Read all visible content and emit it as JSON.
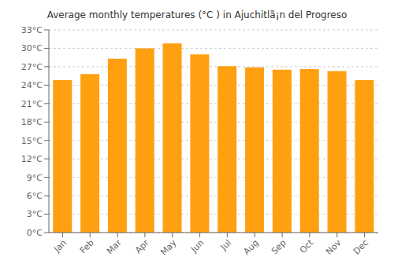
{
  "chart_data": {
    "type": "bar",
    "title": "Average monthly temperatures (°C ) in Ajuchitlã¡n del Progreso",
    "categories": [
      "Jan",
      "Feb",
      "Mar",
      "Apr",
      "May",
      "Jun",
      "Jul",
      "Aug",
      "Sep",
      "Oct",
      "Nov",
      "Dec"
    ],
    "values": [
      24.8,
      25.8,
      28.3,
      30.0,
      30.8,
      29.0,
      27.1,
      26.9,
      26.5,
      26.6,
      26.3,
      24.8
    ],
    "color": "#FFA010",
    "ylim": [
      0,
      33
    ],
    "yticks": [
      {
        "value": 0,
        "label": "0°C"
      },
      {
        "value": 3,
        "label": "3°C"
      },
      {
        "value": 6,
        "label": "6°C"
      },
      {
        "value": 9,
        "label": "9°C"
      },
      {
        "value": 12,
        "label": "12°C"
      },
      {
        "value": 15,
        "label": "15°C"
      },
      {
        "value": 18,
        "label": "18°C"
      },
      {
        "value": 21,
        "label": "21°C"
      },
      {
        "value": 24,
        "label": "24°C"
      },
      {
        "value": 27,
        "label": "27°C"
      },
      {
        "value": 30,
        "label": "30°C"
      },
      {
        "value": 33,
        "label": "33°C"
      }
    ],
    "grid": true
  }
}
